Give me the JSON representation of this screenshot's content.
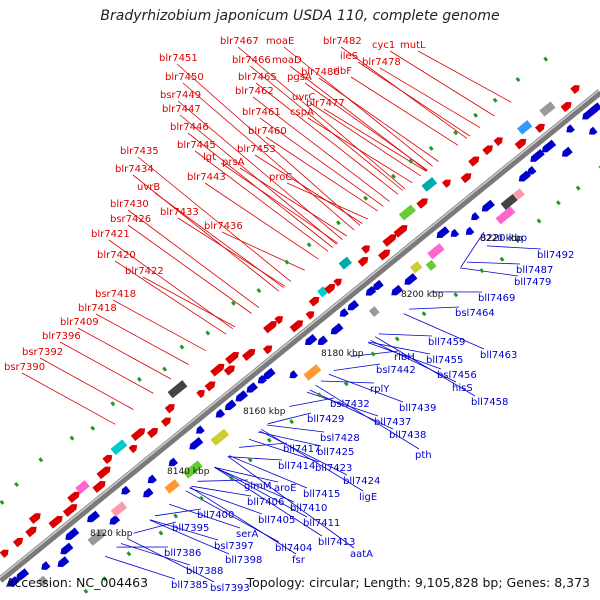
{
  "title": "Bradyrhizobium japonicum USDA 110, complete genome",
  "footer": {
    "accession": "Accession: NC_004463",
    "summary": "Topology: circular; Length: 9,105,828 bp; Genes: 8,373"
  },
  "colors": {
    "forward": "#dd0000",
    "reverse": "#0000cc",
    "axis": "#888888"
  },
  "ticks": [
    "8120 kbp",
    "8140 kbp",
    "8160 kbp",
    "8180 kbp",
    "8200 kbp",
    "8220 kbp"
  ],
  "forward_labels": [
    "blr7467",
    "moaE",
    "blr7482",
    "cyc1",
    "mutL",
    "ileS",
    "blr7466",
    "moaD",
    "blr7478",
    "ribF",
    "blr7486",
    "blr7451",
    "blr7465",
    "pgsA",
    "blr7450",
    "blr7462",
    "uvrC",
    "blr7477",
    "bsr7449",
    "blr7447",
    "blr7461",
    "cspA",
    "blr7446",
    "blr7460",
    "blr7445",
    "blr7453",
    "lgt",
    "prsA",
    "blr7435",
    "blr7434",
    "blr7443",
    "proC",
    "uvrB",
    "blr7430",
    "blr7433",
    "bsr7426",
    "blr7436",
    "blr7421",
    "blr7420",
    "blr7422",
    "bsr7418",
    "blr7418",
    "blr7409",
    "blr7396",
    "bsr7392",
    "bsr7390"
  ],
  "reverse_labels": [
    "8220 kbp",
    "bll7492",
    "bll7487",
    "bll7479",
    "bll7469",
    "bsl7464",
    "bll7459",
    "bll7463",
    "ribH",
    "bll7455",
    "bsl7442",
    "bsl7456",
    "rplY",
    "hisS",
    "bsl7432",
    "bll7439",
    "bll7458",
    "bll7429",
    "bll7437",
    "bsl7428",
    "bll7438",
    "bll7425",
    "pth",
    "bll7417",
    "bll7414",
    "bll7423",
    "glmM",
    "aroE",
    "bll7424",
    "bll7415",
    "ligE",
    "bll7406",
    "bll7410",
    "bll7400",
    "bll7405",
    "bll7411",
    "bll7395",
    "serA",
    "bll7413",
    "bsl7397",
    "bll7404",
    "aatA",
    "bll7386",
    "bll7398",
    "fsr",
    "bll7388",
    "bll7385",
    "bsl7393"
  ]
}
